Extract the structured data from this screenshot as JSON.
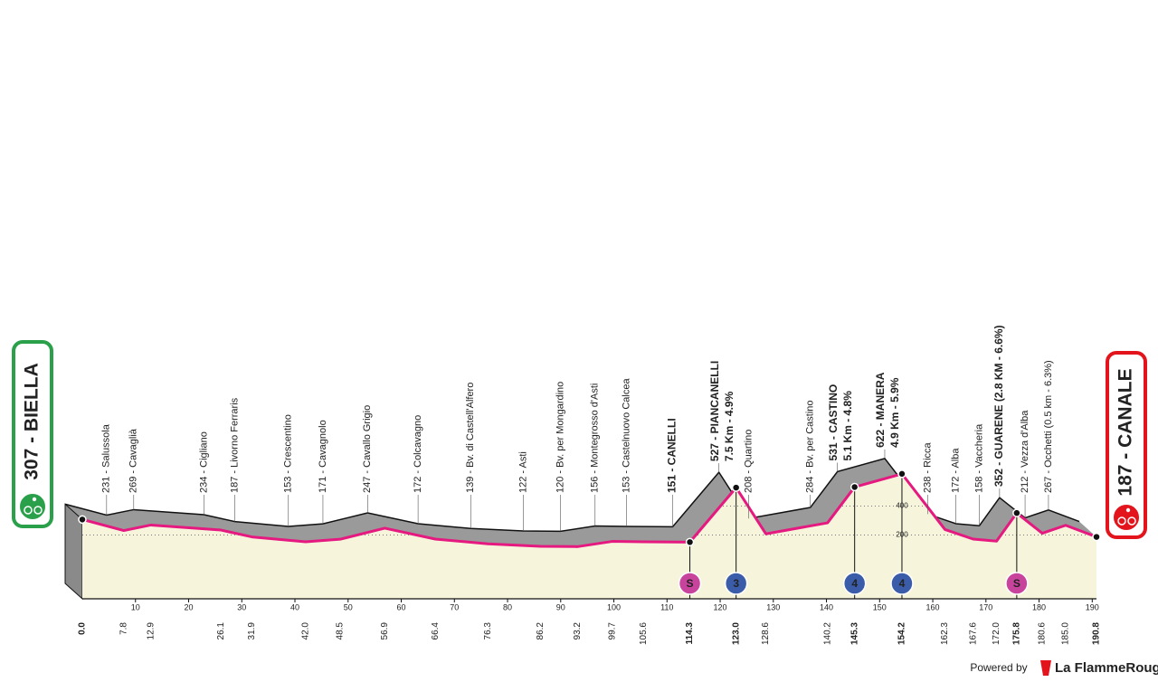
{
  "chart_data": {
    "type": "profile",
    "x": [
      0,
      7.8,
      12.9,
      26.1,
      31.9,
      42.0,
      48.5,
      56.9,
      66.4,
      76.3,
      86.2,
      93.2,
      99.7,
      105.6,
      114.3,
      123.0,
      128.6,
      140.2,
      145.3,
      154.2,
      162.3,
      167.6,
      172.0,
      175.8,
      180.6,
      185.0,
      190.8
    ],
    "x_labels": [
      "0.0",
      "7.8",
      "12.9",
      "26.1",
      "31.9",
      "42.0",
      "48.5",
      "56.9",
      "66.4",
      "76.3",
      "86.2",
      "93.2",
      "99.7",
      "105.6",
      "114.3",
      "123.0",
      "128.6",
      "140.2",
      "145.3",
      "154.2",
      "162.3",
      "167.6",
      "172.0",
      "175.8",
      "180.6",
      "185.0",
      "190.8"
    ],
    "altitude": [
      307,
      231,
      269,
      234,
      187,
      153,
      171,
      247,
      172,
      139,
      122,
      120,
      156,
      153,
      151,
      527,
      208,
      284,
      531,
      622,
      238,
      172,
      158,
      352,
      212,
      267,
      187
    ],
    "labels": [
      "307 - BIELLA",
      "231 - Salussola",
      "269 - Cavaglià",
      "234 - Cigliano",
      "187 - Livorno Ferraris",
      "153 - Crescentino",
      "171 - Cavagnolo",
      "247 - Cavallo Grigio",
      "172 - Colcavagno",
      "139 - Bv. di Castell'Alfero",
      "122 - Asti",
      "120 - Bv. per Mongardino",
      "156 - Montegrosso d'Asti",
      "153 - Castelnuovo Calcea",
      "151 - CANELLI",
      [
        "527 - PIANCANELLI",
        "7.5 Km - 4.9%"
      ],
      "208 - Quartino",
      "284 - Bv. per Castino",
      [
        "531 - CASTINO",
        "5.1 Km - 4.8%"
      ],
      [
        "622 - MANERA",
        "4.9 Km - 5.9%"
      ],
      "238 - Ricca",
      "172 - Alba",
      "158 - Vaccheria",
      "352 - GUARENE (2.8 KM - 6.6%)",
      "212 - Vezza d'Alba",
      "267 - Occhetti (0.5 km - 6.3%)",
      "187 - CANALE"
    ],
    "markers": [
      {
        "km": 114.3,
        "text": "S",
        "color": "#c8449c"
      },
      {
        "km": 123.0,
        "text": "3",
        "color": "#3b5ca8"
      },
      {
        "km": 145.3,
        "text": "4",
        "color": "#3b5ca8"
      },
      {
        "km": 154.2,
        "text": "4",
        "color": "#3b5ca8"
      },
      {
        "km": 175.8,
        "text": "S",
        "color": "#c8449c"
      }
    ],
    "xlim": [
      0,
      190.8
    ],
    "xticks": [
      10,
      20,
      30,
      40,
      50,
      60,
      70,
      80,
      90,
      100,
      110,
      120,
      130,
      140,
      150,
      160,
      170,
      180,
      190
    ],
    "ylim": [
      -240,
      1520
    ],
    "yticks": [
      200,
      400
    ],
    "color": "#e5197f",
    "start_color": "#2aa04a",
    "finish_color": "#e3141b"
  },
  "footer": {
    "powered": "Powered by",
    "brand": "La FlammeRouge"
  }
}
